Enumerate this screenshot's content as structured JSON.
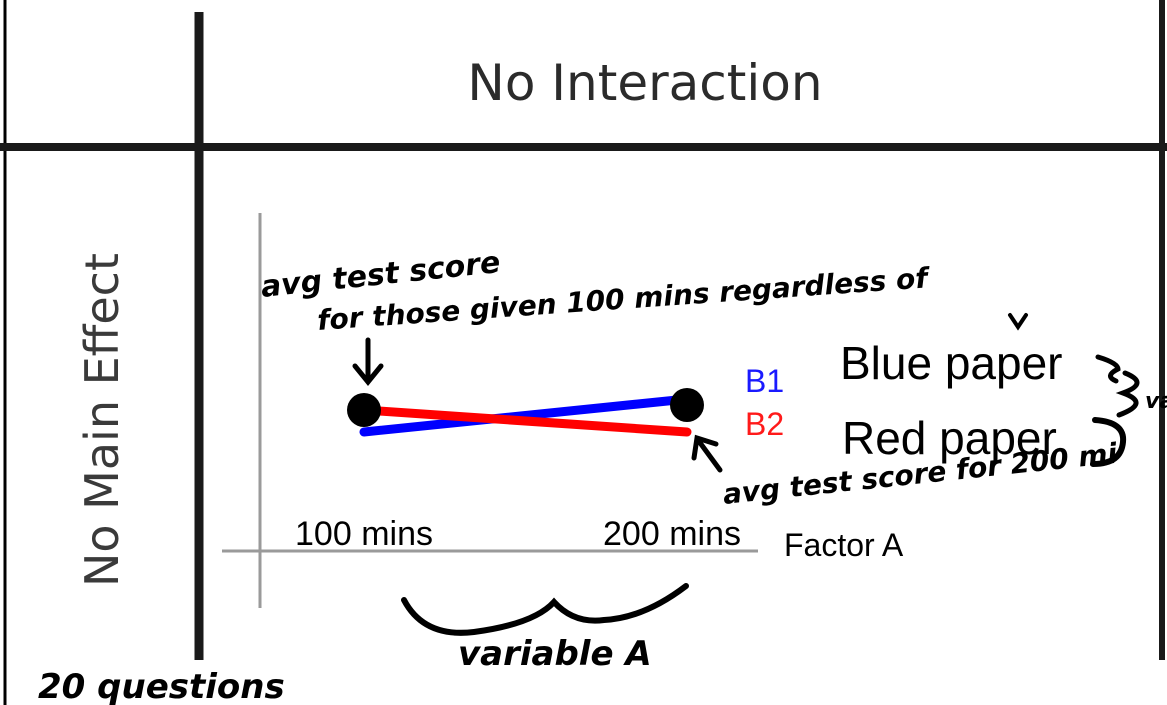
{
  "table": {
    "column_header": "No Interaction",
    "row_header": "No Main Effect"
  },
  "chart_data": {
    "type": "line",
    "categories": [
      "100 mins",
      "200 mins"
    ],
    "xlabel": "Factor A",
    "series": [
      {
        "name": "B1",
        "color": "#0000ff",
        "values": [
          0.4,
          0.55
        ]
      },
      {
        "name": "B2",
        "color": "#ff0000",
        "values": [
          0.5,
          0.4
        ]
      }
    ]
  },
  "legend": {
    "b1": "B1",
    "b2": "B2",
    "b1_color": "#1a1aff",
    "b2_color": "#ff1a1a"
  },
  "typed_labels": {
    "blue_paper": "Blue paper",
    "red_paper": "Red paper"
  },
  "handwriting": {
    "note_line1": "avg test score",
    "note_line2": "for those given 100 mins regardless of",
    "note_right": "avg test score for 200 mi",
    "variable_a": "variable A",
    "questions": "20 questions",
    "cut_var": "va"
  }
}
